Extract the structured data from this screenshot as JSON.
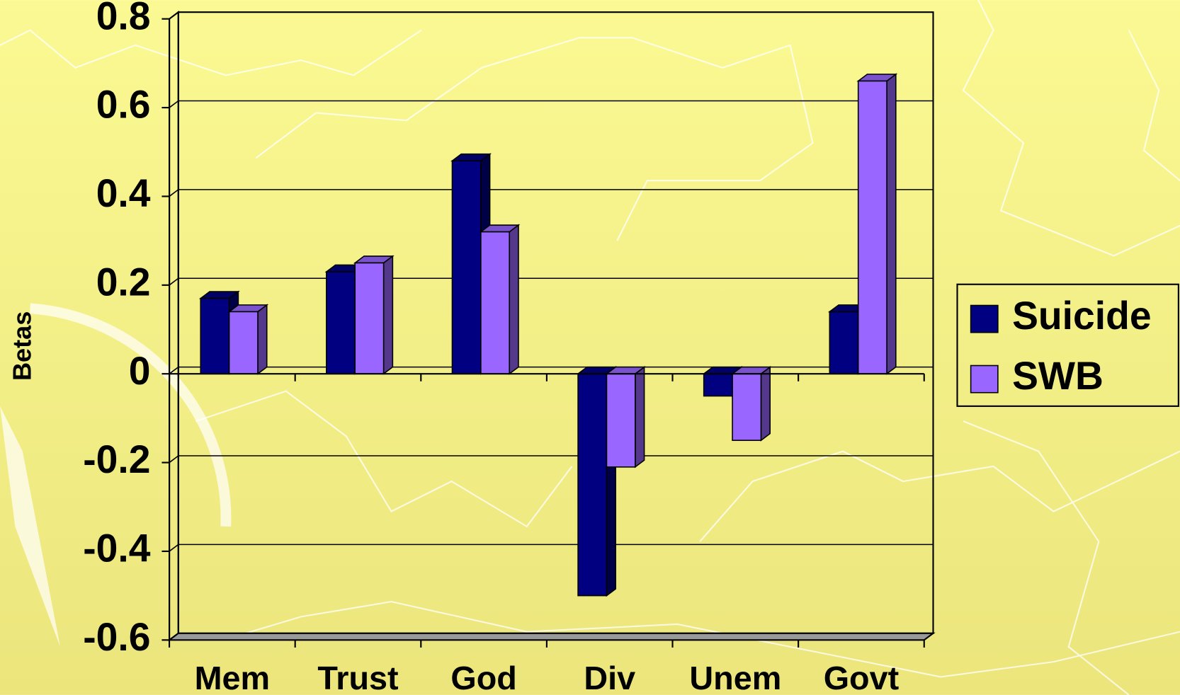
{
  "chart_data": {
    "type": "bar3d",
    "y_label": "Betas",
    "categories": [
      "Mem",
      "Trust",
      "God",
      "Div",
      "Unem",
      "Govt"
    ],
    "series": [
      {
        "name": "Suicide",
        "color": "#000080",
        "values": [
          0.17,
          0.23,
          0.48,
          -0.5,
          -0.05,
          0.14
        ]
      },
      {
        "name": "SWB",
        "color": "#9966ff",
        "values": [
          0.14,
          0.25,
          0.32,
          -0.21,
          -0.15,
          0.66
        ]
      }
    ],
    "ylim": [
      -0.6,
      0.8
    ],
    "yticks": [
      0.8,
      0.6,
      0.4,
      0.2,
      0,
      -0.2,
      -0.4,
      -0.6
    ],
    "grid": true,
    "legend": "right"
  }
}
